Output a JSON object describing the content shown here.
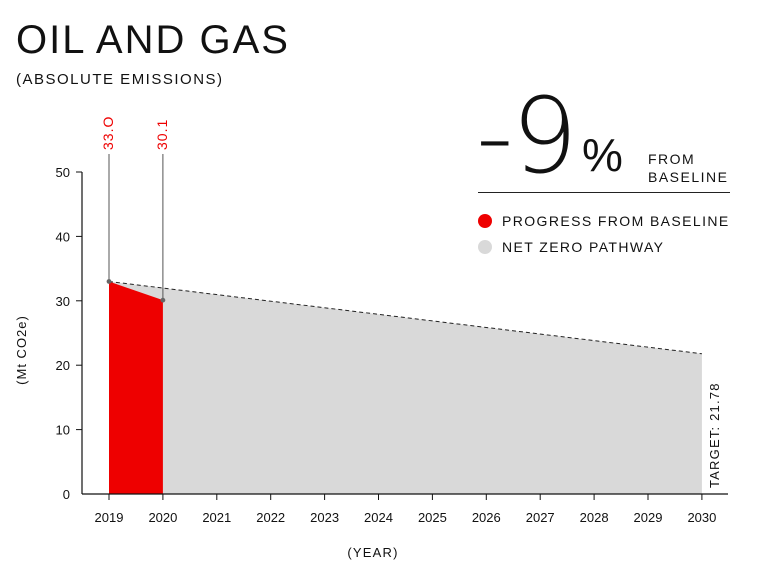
{
  "header": {
    "title": "OIL AND GAS",
    "subtitle": "(ABSOLUTE EMISSIONS)"
  },
  "kpi": {
    "value": "-9",
    "unit": "%",
    "caption_line1": "FROM",
    "caption_line2": "BASELINE"
  },
  "legend": {
    "items": [
      {
        "label": "PROGRESS FROM BASELINE",
        "color": "#ee0000"
      },
      {
        "label": "NET ZERO PATHWAY",
        "color": "#d9d9d9"
      }
    ]
  },
  "chart_data": {
    "type": "area",
    "title": "OIL AND GAS",
    "subtitle": "(ABSOLUTE EMISSIONS)",
    "xlabel": "(YEAR)",
    "ylabel": "(Mt CO2e)",
    "x": [
      "2019",
      "2020",
      "2021",
      "2022",
      "2023",
      "2024",
      "2025",
      "2026",
      "2027",
      "2028",
      "2029",
      "2030"
    ],
    "ylim": [
      0,
      50
    ],
    "yticks": [
      0,
      10,
      20,
      30,
      40,
      50
    ],
    "grid": false,
    "series": [
      {
        "name": "PROGRESS FROM BASELINE",
        "color": "#ee0000",
        "x": [
          "2019",
          "2020"
        ],
        "values": [
          33.0,
          30.1
        ]
      },
      {
        "name": "NET ZERO PATHWAY",
        "color": "#d9d9d9",
        "x": [
          "2019",
          "2030"
        ],
        "values": [
          33.0,
          21.78
        ]
      }
    ],
    "annotations": [
      {
        "x": "2019",
        "text": "33.O"
      },
      {
        "x": "2020",
        "text": "30.1"
      }
    ],
    "target_label": "TARGET: 21.78",
    "annotation_color": "#ee0000"
  }
}
